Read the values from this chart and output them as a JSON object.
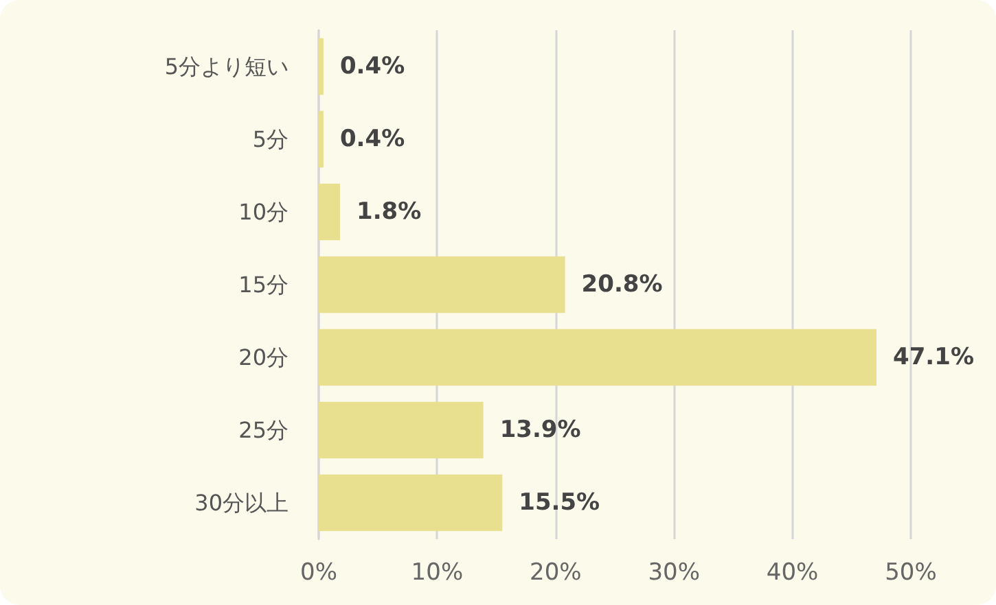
{
  "chart_data": {
    "type": "bar",
    "orientation": "horizontal",
    "categories": [
      "5分より短い",
      "5分",
      "10分",
      "15分",
      "20分",
      "25分",
      "30分以上"
    ],
    "values": [
      0.4,
      0.4,
      1.8,
      20.8,
      47.1,
      13.9,
      15.5
    ],
    "value_labels": [
      "0.4%",
      "0.4%",
      "1.8%",
      "20.8%",
      "47.1%",
      "13.9%",
      "15.5%"
    ],
    "color": "#e8e08f",
    "xlim": [
      0,
      50
    ],
    "xticks": [
      {
        "value": 0,
        "label": "0%"
      },
      {
        "value": 10,
        "label": "10%"
      },
      {
        "value": 20,
        "label": "20%"
      },
      {
        "value": 30,
        "label": "30%"
      },
      {
        "value": 40,
        "label": "40%"
      },
      {
        "value": 50,
        "label": "50%"
      }
    ],
    "grid": "x"
  }
}
